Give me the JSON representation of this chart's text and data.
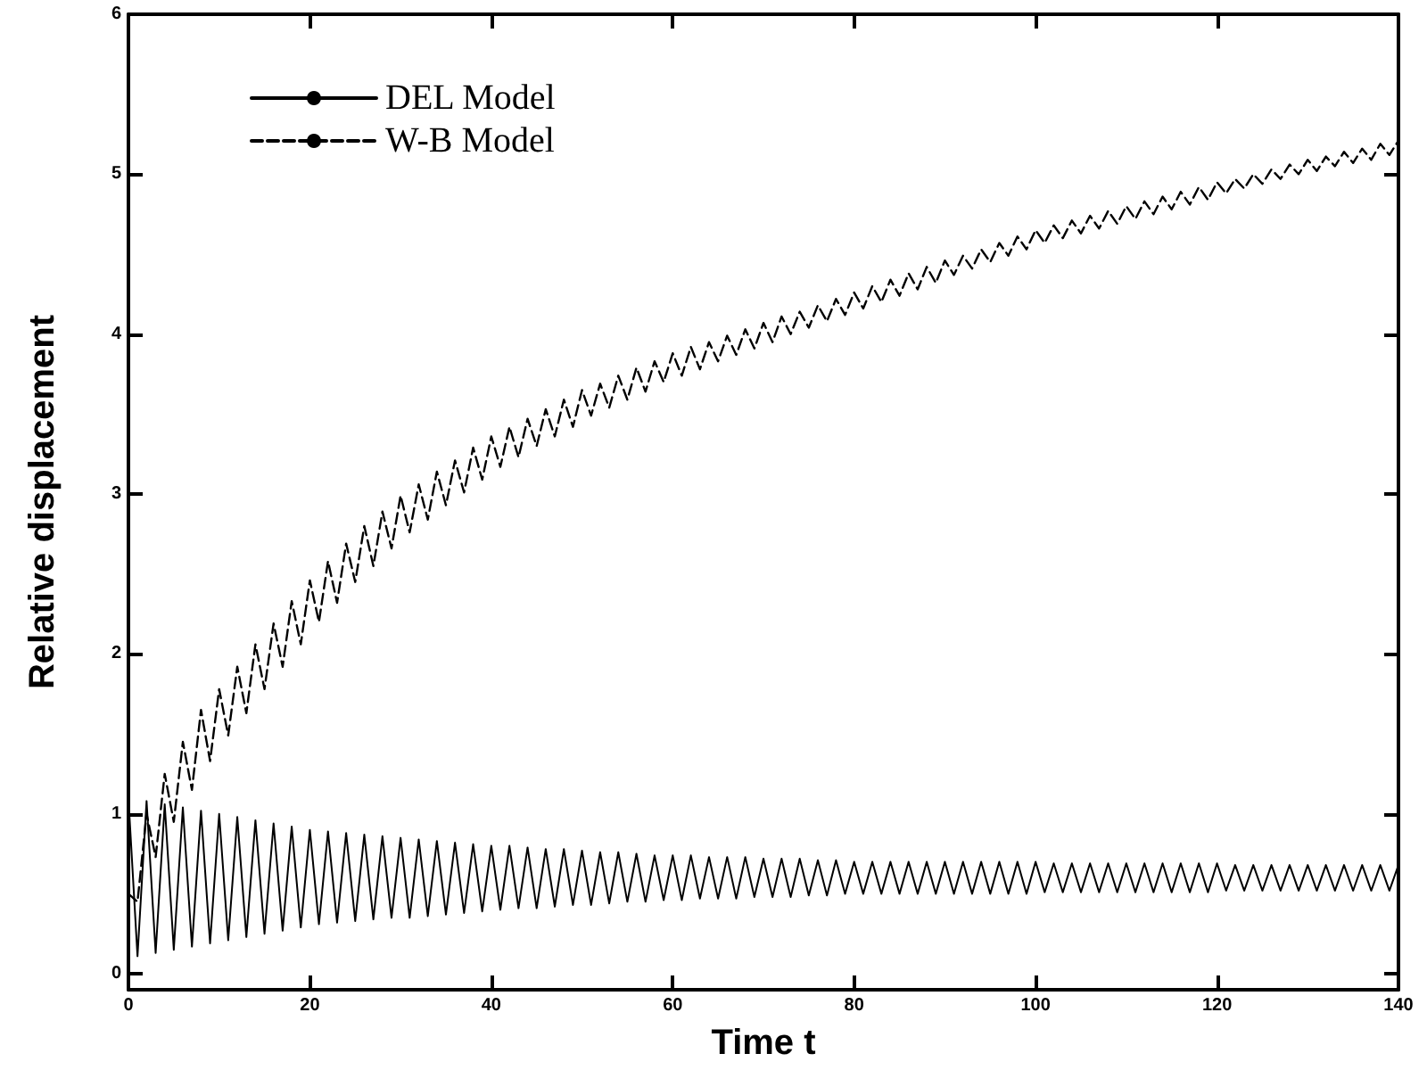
{
  "chart_data": {
    "type": "line",
    "xlabel": "Time t",
    "ylabel": "Relative displacement",
    "x": [
      0,
      1,
      2,
      3,
      4,
      5,
      6,
      7,
      8,
      9,
      10,
      11,
      12,
      13,
      14,
      15,
      16,
      17,
      18,
      19,
      20,
      21,
      22,
      23,
      24,
      25,
      26,
      27,
      28,
      29,
      30,
      31,
      32,
      33,
      34,
      35,
      36,
      37,
      38,
      39,
      40,
      41,
      42,
      43,
      44,
      45,
      46,
      47,
      48,
      49,
      50,
      51,
      52,
      53,
      54,
      55,
      56,
      57,
      58,
      59,
      60,
      61,
      62,
      63,
      64,
      65,
      66,
      67,
      68,
      69,
      70,
      71,
      72,
      73,
      74,
      75,
      76,
      77,
      78,
      79,
      80,
      81,
      82,
      83,
      84,
      85,
      86,
      87,
      88,
      89,
      90,
      91,
      92,
      93,
      94,
      95,
      96,
      97,
      98,
      99,
      100,
      101,
      102,
      103,
      104,
      105,
      106,
      107,
      108,
      109,
      110,
      111,
      112,
      113,
      114,
      115,
      116,
      117,
      118,
      119,
      120,
      121,
      122,
      123,
      124,
      125,
      126,
      127,
      128,
      129,
      130,
      131,
      132,
      133,
      134,
      135,
      136,
      137,
      138,
      139,
      140
    ],
    "series": [
      {
        "name": "DEL Model",
        "color": "#000000",
        "line_style": "solid",
        "values": [
          1.1,
          0.11,
          1.08,
          0.13,
          1.06,
          0.15,
          1.04,
          0.17,
          1.02,
          0.19,
          1.0,
          0.21,
          0.98,
          0.23,
          0.96,
          0.25,
          0.94,
          0.27,
          0.92,
          0.29,
          0.9,
          0.31,
          0.89,
          0.32,
          0.88,
          0.33,
          0.87,
          0.34,
          0.86,
          0.35,
          0.85,
          0.35,
          0.84,
          0.36,
          0.83,
          0.37,
          0.82,
          0.38,
          0.81,
          0.39,
          0.8,
          0.4,
          0.8,
          0.41,
          0.79,
          0.41,
          0.78,
          0.42,
          0.78,
          0.43,
          0.77,
          0.43,
          0.76,
          0.44,
          0.76,
          0.45,
          0.75,
          0.45,
          0.74,
          0.46,
          0.74,
          0.46,
          0.74,
          0.47,
          0.73,
          0.47,
          0.73,
          0.47,
          0.73,
          0.48,
          0.72,
          0.48,
          0.72,
          0.48,
          0.72,
          0.49,
          0.71,
          0.49,
          0.71,
          0.5,
          0.7,
          0.5,
          0.7,
          0.5,
          0.7,
          0.5,
          0.7,
          0.5,
          0.7,
          0.5,
          0.7,
          0.5,
          0.7,
          0.5,
          0.7,
          0.5,
          0.7,
          0.5,
          0.7,
          0.5,
          0.7,
          0.51,
          0.69,
          0.51,
          0.69,
          0.51,
          0.69,
          0.51,
          0.69,
          0.51,
          0.69,
          0.51,
          0.69,
          0.51,
          0.69,
          0.51,
          0.69,
          0.51,
          0.69,
          0.51,
          0.69,
          0.52,
          0.68,
          0.52,
          0.68,
          0.52,
          0.68,
          0.52,
          0.68,
          0.52,
          0.68,
          0.52,
          0.68,
          0.52,
          0.68,
          0.52,
          0.68,
          0.52,
          0.68,
          0.52,
          0.68
        ]
      },
      {
        "name": "W-B Model",
        "color": "#000000",
        "line_style": "dashed",
        "values": [
          0.5,
          0.45,
          1.0,
          0.73,
          1.25,
          0.95,
          1.45,
          1.15,
          1.65,
          1.33,
          1.78,
          1.49,
          1.92,
          1.63,
          2.06,
          1.78,
          2.19,
          1.92,
          2.33,
          2.06,
          2.46,
          2.2,
          2.58,
          2.32,
          2.69,
          2.45,
          2.8,
          2.55,
          2.89,
          2.66,
          2.99,
          2.76,
          3.06,
          2.84,
          3.14,
          2.93,
          3.21,
          3.01,
          3.29,
          3.09,
          3.36,
          3.17,
          3.42,
          3.23,
          3.47,
          3.3,
          3.53,
          3.36,
          3.59,
          3.42,
          3.65,
          3.49,
          3.69,
          3.54,
          3.74,
          3.59,
          3.79,
          3.64,
          3.83,
          3.7,
          3.88,
          3.74,
          3.92,
          3.78,
          3.95,
          3.83,
          3.99,
          3.87,
          4.03,
          3.91,
          4.07,
          3.95,
          4.11,
          4.0,
          4.14,
          4.04,
          4.18,
          4.08,
          4.22,
          4.12,
          4.26,
          4.16,
          4.3,
          4.2,
          4.34,
          4.24,
          4.38,
          4.28,
          4.42,
          4.32,
          4.46,
          4.37,
          4.49,
          4.41,
          4.53,
          4.45,
          4.57,
          4.49,
          4.61,
          4.53,
          4.65,
          4.57,
          4.68,
          4.6,
          4.71,
          4.63,
          4.74,
          4.66,
          4.77,
          4.69,
          4.8,
          4.72,
          4.83,
          4.75,
          4.86,
          4.78,
          4.89,
          4.81,
          4.92,
          4.84,
          4.95,
          4.88,
          4.97,
          4.91,
          5.0,
          4.94,
          5.03,
          4.97,
          5.06,
          5.0,
          5.09,
          5.02,
          5.11,
          5.05,
          5.14,
          5.07,
          5.16,
          5.09,
          5.19,
          5.12,
          5.21
        ]
      }
    ],
    "xlim": [
      0,
      140
    ],
    "xticks": [
      0,
      20,
      40,
      60,
      80,
      100,
      120,
      140
    ],
    "ylim": [
      -0.1,
      6
    ],
    "yticks": [
      0,
      1,
      2,
      3,
      4,
      5,
      6
    ],
    "grid": false,
    "legend": "top left",
    "marker": "none"
  }
}
